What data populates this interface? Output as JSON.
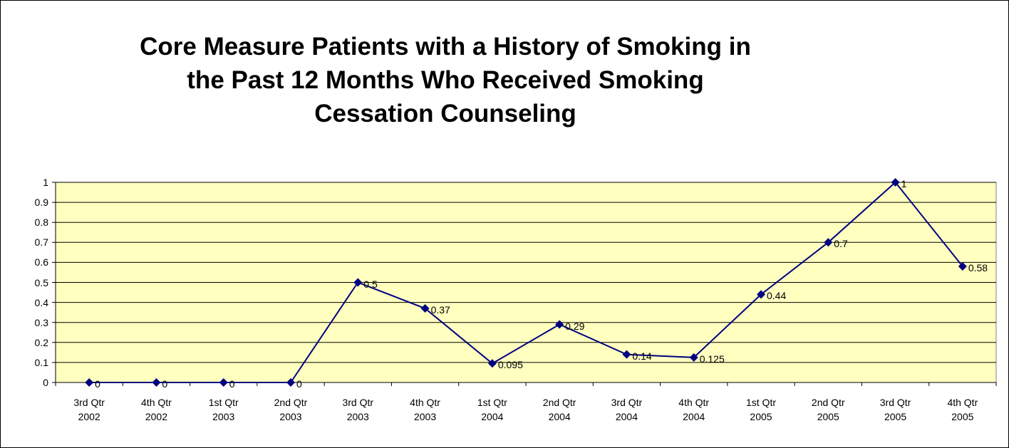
{
  "chart_data": {
    "type": "line",
    "title": "Core Measure Patients with a History of Smoking in\nthe Past 12 Months Who Received Smoking\nCessation Counseling",
    "categories": [
      "3rd Qtr\n2002",
      "4th Qtr\n2002",
      "1st Qtr\n2003",
      "2nd Qtr\n2003",
      "3rd Qtr\n2003",
      "4th Qtr\n2003",
      "1st Qtr\n2004",
      "2nd Qtr\n2004",
      "3rd Qtr\n2004",
      "4th Qtr\n2004",
      "1st Qtr\n2005",
      "2nd Qtr\n2005",
      "3rd Qtr\n2005",
      "4th Qtr\n2005"
    ],
    "values": [
      0,
      0,
      0,
      0,
      0.5,
      0.37,
      0.095,
      0.29,
      0.14,
      0.125,
      0.44,
      0.7,
      1,
      0.58
    ],
    "color": "#000080",
    "plot_background": "#ffffc0",
    "ylim": [
      0,
      1
    ],
    "yticks": [
      0,
      0.1,
      0.2,
      0.3,
      0.4,
      0.5,
      0.6,
      0.7,
      0.8,
      0.9,
      1
    ],
    "grid": true
  }
}
